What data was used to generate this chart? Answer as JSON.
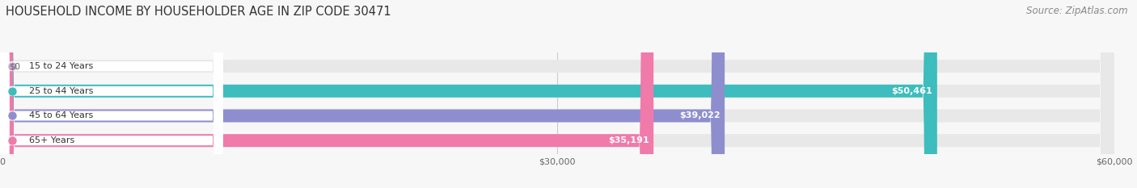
{
  "title": "HOUSEHOLD INCOME BY HOUSEHOLDER AGE IN ZIP CODE 30471",
  "source": "Source: ZipAtlas.com",
  "categories": [
    "15 to 24 Years",
    "25 to 44 Years",
    "45 to 64 Years",
    "65+ Years"
  ],
  "values": [
    0,
    50461,
    39022,
    35191
  ],
  "labels": [
    "$0",
    "$50,461",
    "$39,022",
    "$35,191"
  ],
  "bar_colors": [
    "#c9a8d4",
    "#3dbdbd",
    "#8e8ecf",
    "#f07aaa"
  ],
  "track_color": "#e8e8e8",
  "background_color": "#f7f7f7",
  "xlim": [
    0,
    60000
  ],
  "xticks": [
    0,
    30000,
    60000
  ],
  "xticklabels": [
    "$0",
    "$30,000",
    "$60,000"
  ],
  "title_fontsize": 10.5,
  "source_fontsize": 8.5,
  "bar_height": 0.52
}
